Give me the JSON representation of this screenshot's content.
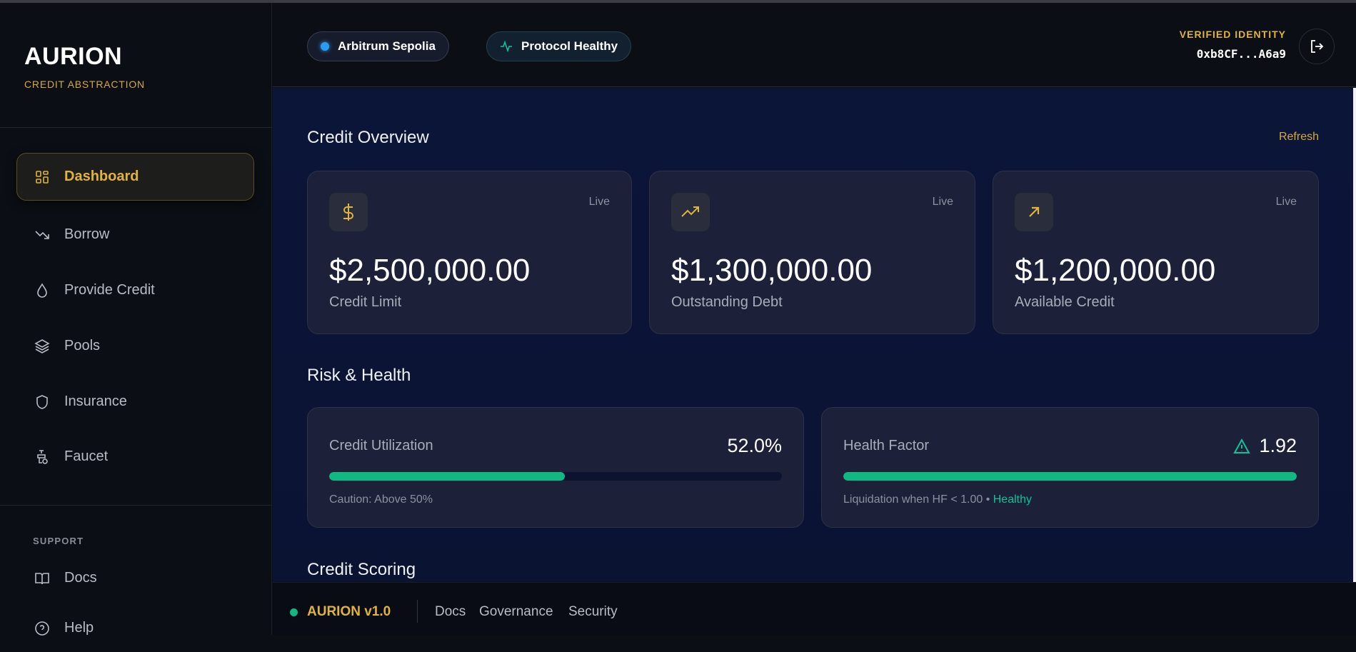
{
  "sidebar": {
    "brand": "AURION",
    "subtitle": "CREDIT ABSTRACTION",
    "items": [
      {
        "label": "Dashboard",
        "icon": "dashboard-grid-icon",
        "active": true
      },
      {
        "label": "Borrow",
        "icon": "trending-down-icon"
      },
      {
        "label": "Provide Credit",
        "icon": "droplet-icon"
      },
      {
        "label": "Pools",
        "icon": "layers-icon"
      },
      {
        "label": "Insurance",
        "icon": "shield-icon"
      },
      {
        "label": "Faucet",
        "icon": "faucet-icon"
      }
    ],
    "support_heading": "SUPPORT",
    "support_items": [
      {
        "label": "Docs",
        "icon": "book-icon"
      },
      {
        "label": "Help",
        "icon": "help-circle-icon"
      }
    ]
  },
  "header": {
    "network": "Arbitrum Sepolia",
    "status": "Protocol Healthy",
    "identity_label": "VERIFIED IDENTITY",
    "address": "0xb8CF...A6a9"
  },
  "overview": {
    "title": "Credit Overview",
    "refresh": "Refresh",
    "cards": [
      {
        "value": "$2,500,000.00",
        "label": "Credit Limit",
        "badge": "Live",
        "icon": "dollar-icon"
      },
      {
        "value": "$1,300,000.00",
        "label": "Outstanding Debt",
        "badge": "Live",
        "icon": "trending-up-icon"
      },
      {
        "value": "$1,200,000.00",
        "label": "Available Credit",
        "badge": "Live",
        "icon": "arrow-up-right-icon"
      }
    ]
  },
  "risk": {
    "title": "Risk & Health",
    "utilization": {
      "label": "Credit Utilization",
      "value": "52.0%",
      "progress": 52,
      "note": "Caution: Above 50%"
    },
    "health": {
      "label": "Health Factor",
      "value": "1.92",
      "progress": 100,
      "note": "Liquidation when HF < 1.00 •",
      "status": "Healthy"
    }
  },
  "scoring": {
    "title": "Credit Scoring"
  },
  "footer": {
    "brand": "AURION v1.0",
    "links": [
      "Docs",
      "Governance",
      "Security"
    ]
  },
  "colors": {
    "accent": "#e0b43a",
    "success": "#10b981",
    "network_dot": "#2b9cf3"
  }
}
